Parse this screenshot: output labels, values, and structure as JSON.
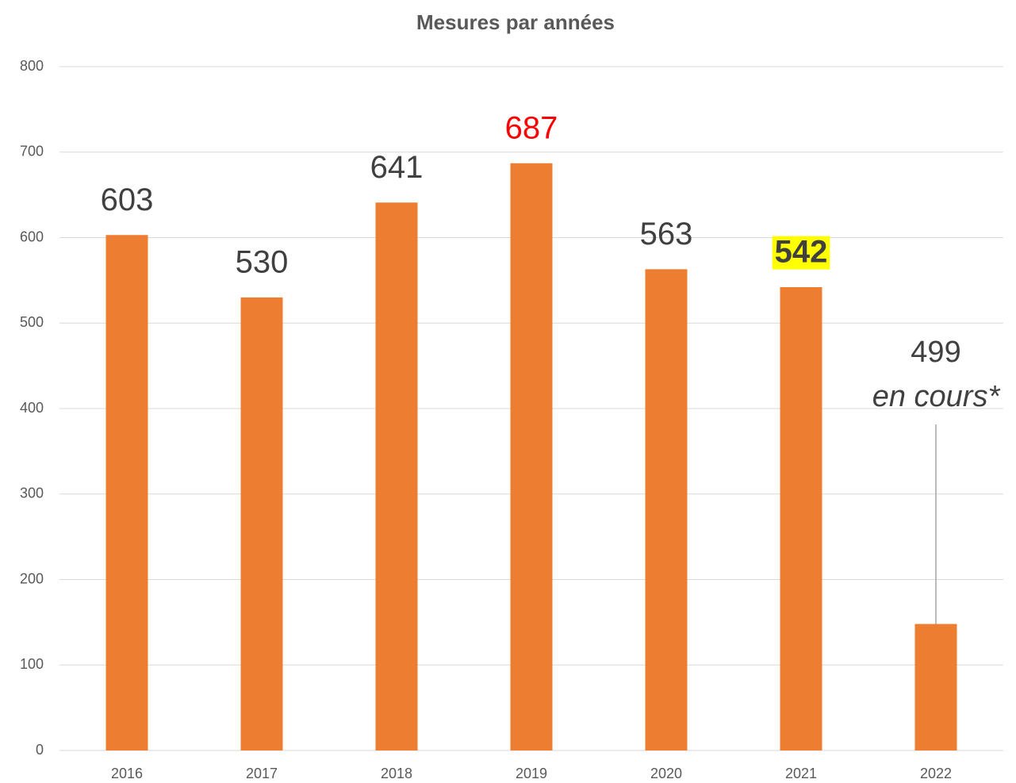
{
  "chart_data": {
    "type": "bar",
    "title": "Mesures par années",
    "categories": [
      "2016",
      "2017",
      "2018",
      "2019",
      "2020",
      "2021",
      "2022"
    ],
    "values": [
      603,
      530,
      641,
      687,
      563,
      542,
      148
    ],
    "value_labels": [
      "603",
      "530",
      "641",
      "687",
      "563",
      "542",
      null
    ],
    "color": "#ed7d31",
    "label_colors": [
      "#404040",
      "#404040",
      "#404040",
      "#ff0000",
      "#404040",
      "#404040",
      null
    ],
    "label_highlight": [
      null,
      null,
      null,
      null,
      null,
      "#ffff00",
      null
    ],
    "annotations": [
      {
        "category": "2022",
        "text": "499"
      },
      {
        "category": "2022",
        "text": "en cours*"
      }
    ],
    "ylim": [
      0,
      800
    ],
    "yticks": [
      0,
      100,
      200,
      300,
      400,
      500,
      600,
      700,
      800
    ],
    "grid": true
  }
}
